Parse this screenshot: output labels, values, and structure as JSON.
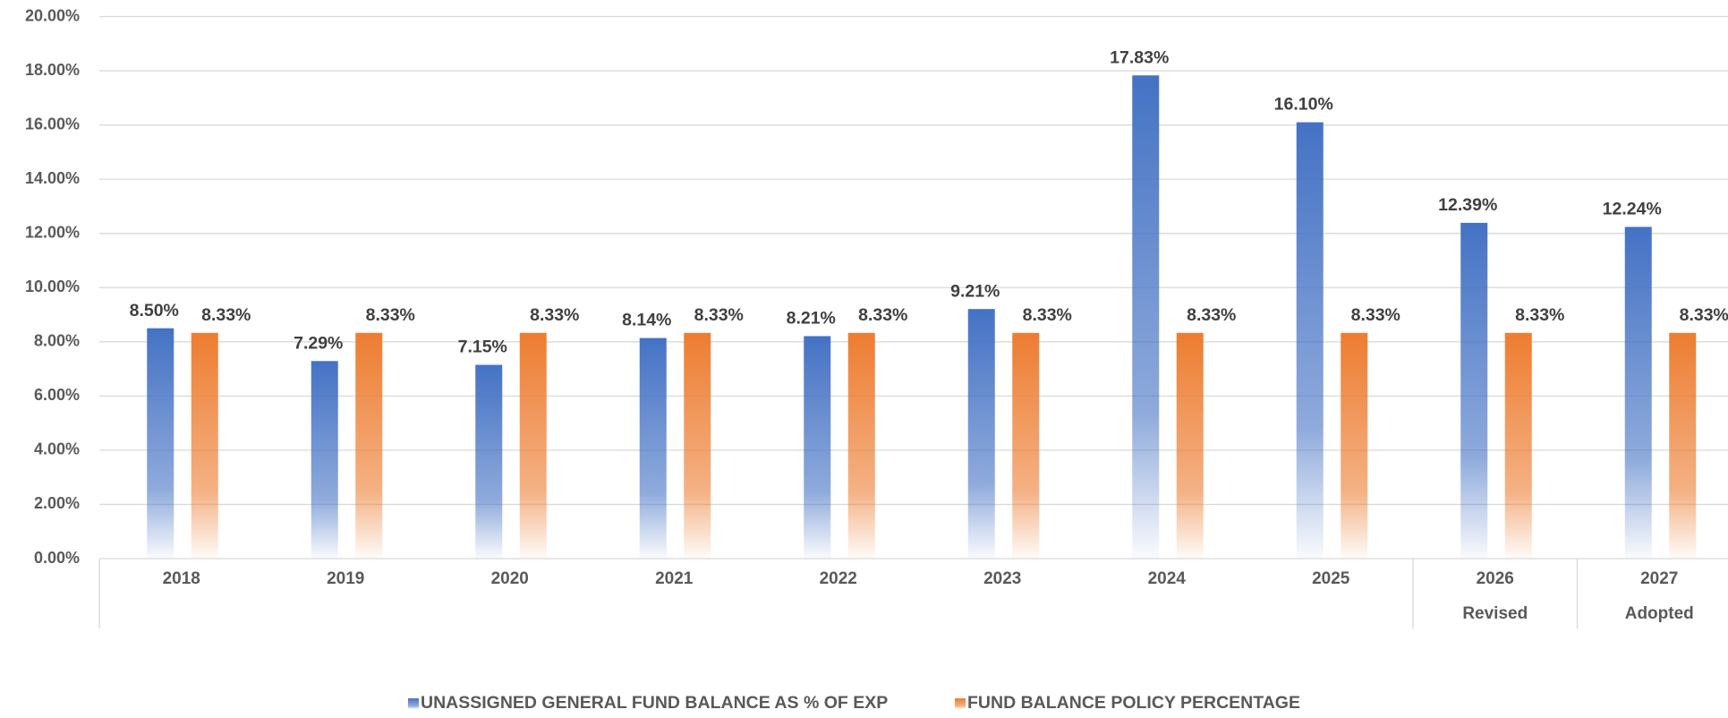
{
  "chart_data": {
    "type": "bar",
    "categories": [
      "2018",
      "2019",
      "2020",
      "2021",
      "2022",
      "2023",
      "2024",
      "2025",
      "2026",
      "2027"
    ],
    "sublabels": [
      null,
      null,
      null,
      null,
      null,
      null,
      null,
      null,
      "Revised",
      "Adopted"
    ],
    "series": [
      {
        "name": "UNASSIGNED GENERAL FUND BALANCE AS % OF EXP",
        "color": "#4472c4",
        "values": [
          8.5,
          7.29,
          7.15,
          8.14,
          8.21,
          9.21,
          17.83,
          16.1,
          12.39,
          12.24
        ],
        "value_labels": [
          "8.50%",
          "7.29%",
          "7.15%",
          "8.14%",
          "8.21%",
          "9.21%",
          "17.83%",
          "16.10%",
          "12.39%",
          "12.24%"
        ]
      },
      {
        "name": "FUND BALANCE POLICY PERCENTAGE",
        "color": "#ed7d31",
        "values": [
          8.33,
          8.33,
          8.33,
          8.33,
          8.33,
          8.33,
          8.33,
          8.33,
          8.33,
          8.33
        ],
        "value_labels": [
          "8.33%",
          "8.33%",
          "8.33%",
          "8.33%",
          "8.33%",
          "8.33%",
          "8.33%",
          "8.33%",
          "8.33%",
          "8.33%"
        ]
      }
    ],
    "ylim": [
      0,
      20
    ],
    "yticks": [
      {
        "value": 0,
        "label": "0.00%"
      },
      {
        "value": 2,
        "label": "2.00%"
      },
      {
        "value": 4,
        "label": "4.00%"
      },
      {
        "value": 6,
        "label": "6.00%"
      },
      {
        "value": 8,
        "label": "8.00%"
      },
      {
        "value": 10,
        "label": "10.00%"
      },
      {
        "value": 12,
        "label": "12.00%"
      },
      {
        "value": 14,
        "label": "14.00%"
      },
      {
        "value": 16,
        "label": "16.00%"
      },
      {
        "value": 18,
        "label": "18.00%"
      },
      {
        "value": 20,
        "label": "20.00%"
      }
    ],
    "grid": true,
    "legend": "bottom",
    "gradient_fill": true
  }
}
